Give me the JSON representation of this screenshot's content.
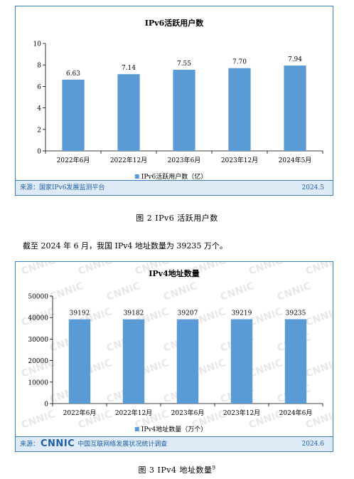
{
  "chart1": {
    "source_label": "来源：国家IPv6发展监测平台",
    "source_date": "2024.5"
  },
  "caption1": "图 2   IPv6 活跃用户数",
  "paragraph": "截至 2024 年 6 月，我国 IPv4 地址数量为 39235 万个。",
  "chart2": {
    "source_prefix": "来源：",
    "source_logo": "CNNIC",
    "source_text": "中国互联网络发展状况统计调查",
    "source_date": "2024.6"
  },
  "caption2": "图 3   IPv4 地址数量",
  "caption2_sup": "9",
  "watermark_text": "CNNIC",
  "colors": {
    "bar": "#5b9bd5",
    "border": "#3a7cc1",
    "source_bg": "#deebf7",
    "source_text": "#1f5fa8"
  },
  "chart_data": [
    {
      "type": "bar",
      "title": "IPv6活跃用户数",
      "categories": [
        "2022年6月",
        "2022年12月",
        "2023年6月",
        "2023年12月",
        "2024年5月"
      ],
      "series": [
        {
          "name": "IPv6活跃用户数（亿）",
          "values": [
            6.63,
            7.14,
            7.55,
            7.7,
            7.94
          ]
        }
      ],
      "data_labels": [
        "6.63",
        "7.14",
        "7.55",
        "7.70",
        "7.94"
      ],
      "ylim": [
        0,
        10
      ],
      "yticks": [
        0,
        2,
        4,
        6,
        8,
        10
      ],
      "legend_position": "bottom",
      "grid": false
    },
    {
      "type": "bar",
      "title": "IPv4地址数量",
      "categories": [
        "2022年6月",
        "2022年12月",
        "2023年6月",
        "2023年12月",
        "2024年6月"
      ],
      "series": [
        {
          "name": "IPv4地址数量（万个）",
          "values": [
            39192,
            39182,
            39207,
            39219,
            39235
          ]
        }
      ],
      "data_labels": [
        "39192",
        "39182",
        "39207",
        "39219",
        "39235"
      ],
      "ylim": [
        0,
        50000
      ],
      "yticks": [
        0,
        10000,
        20000,
        30000,
        40000,
        50000
      ],
      "legend_position": "bottom",
      "grid": false
    }
  ]
}
